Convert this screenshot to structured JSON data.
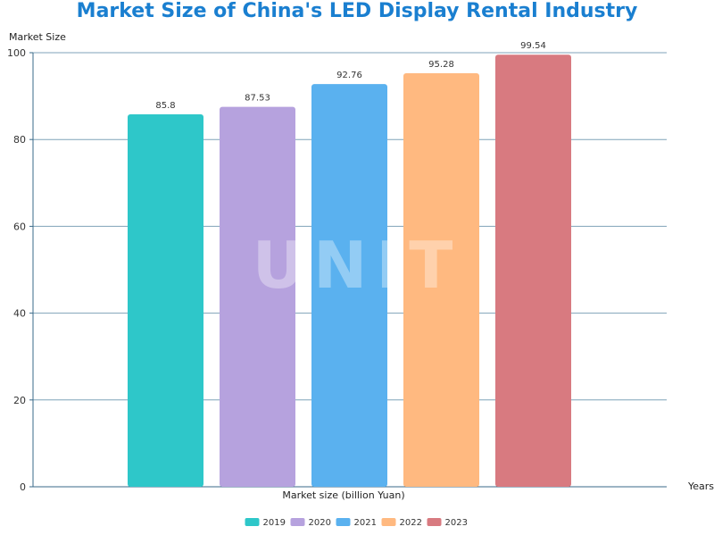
{
  "chart_data": {
    "type": "bar",
    "title": "Market Size of China's LED Display Rental Industry",
    "ylabel": "Market Size",
    "xlabel": "Market size (billion Yuan)",
    "x_axis_name": "Years",
    "categories": [
      "2019",
      "2020",
      "2021",
      "2022",
      "2023"
    ],
    "values": [
      85.8,
      87.53,
      92.76,
      95.28,
      99.54
    ],
    "value_labels": [
      "85.8",
      "87.53",
      "92.76",
      "95.28",
      "99.54"
    ],
    "colors": [
      "#2ec7c9",
      "#b6a2de",
      "#5ab1ef",
      "#ffb980",
      "#d87a80"
    ],
    "ylim": [
      0,
      100
    ],
    "yticks": [
      0,
      20,
      40,
      60,
      80,
      100
    ],
    "ytick_labels": [
      "0",
      "20",
      "40",
      "60",
      "80",
      "100"
    ],
    "grid": true,
    "legend_position": "bottom-center",
    "watermark": "UNIT"
  }
}
